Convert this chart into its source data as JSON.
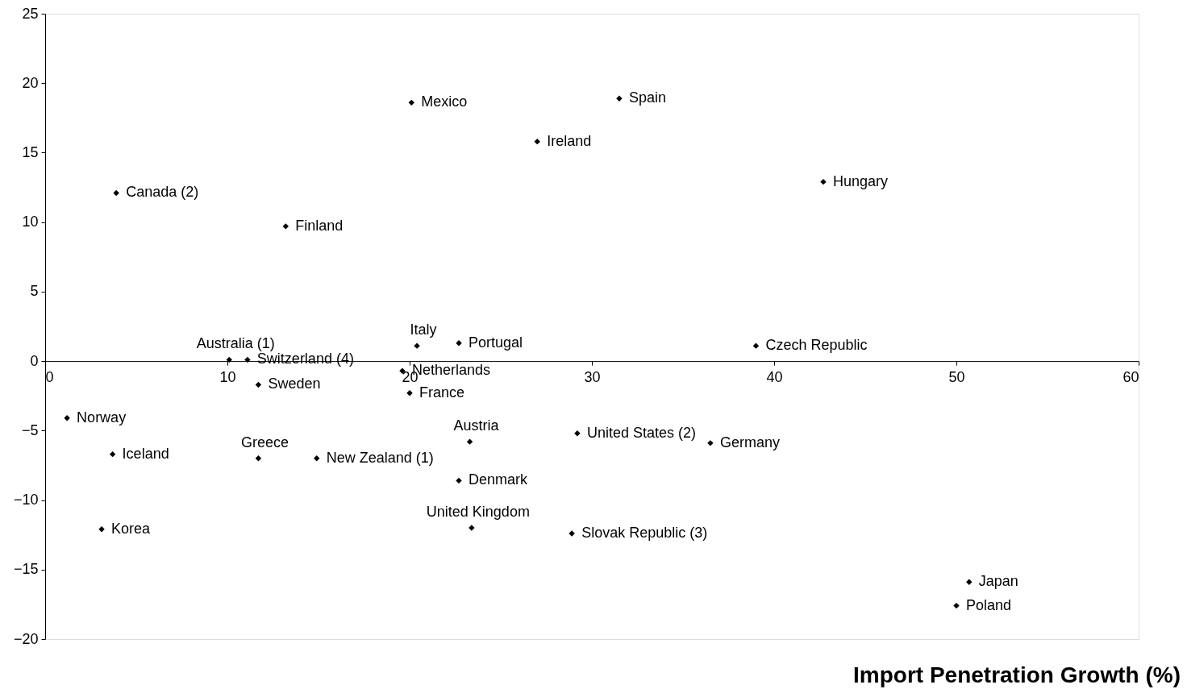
{
  "chart_data": {
    "type": "scatter",
    "xlabel": "Import Penetration Growth (%)",
    "x": [
      20.1,
      31.5,
      27.0,
      42.7,
      3.9,
      13.2,
      10.1,
      11.1,
      20.4,
      22.7,
      39.0,
      19.6,
      11.7,
      20.0,
      1.2,
      3.7,
      11.7,
      14.9,
      23.3,
      29.2,
      36.5,
      22.7,
      3.1,
      23.4,
      28.9,
      50.7,
      50.0
    ],
    "series": [
      {
        "color": "#000000",
        "values": [
          18.6,
          18.9,
          15.8,
          12.9,
          12.1,
          9.7,
          0.1,
          0.1,
          1.1,
          1.3,
          1.1,
          -0.7,
          -1.7,
          -2.3,
          -4.1,
          -6.7,
          -7.0,
          -7.0,
          -5.8,
          -5.2,
          -5.9,
          -8.6,
          -12.1,
          -12.0,
          -12.4,
          -15.9,
          -17.6
        ]
      }
    ],
    "annotations": [
      {
        "text": "Mexico",
        "x": 20.1,
        "y": 18.6
      },
      {
        "text": "Spain",
        "x": 31.5,
        "y": 18.9
      },
      {
        "text": "Ireland",
        "x": 27.0,
        "y": 15.8
      },
      {
        "text": "Hungary",
        "x": 42.7,
        "y": 12.9
      },
      {
        "text": "Canada (2)",
        "x": 3.9,
        "y": 12.1
      },
      {
        "text": "Finland",
        "x": 13.2,
        "y": 9.7
      },
      {
        "text": "Australia (1)",
        "x": 10.1,
        "y": 0.1
      },
      {
        "text": "Switzerland (4)",
        "x": 11.1,
        "y": 0.1
      },
      {
        "text": "Italy",
        "x": 20.4,
        "y": 1.1
      },
      {
        "text": "Portugal",
        "x": 22.7,
        "y": 1.3
      },
      {
        "text": "Czech Republic",
        "x": 39.0,
        "y": 1.1
      },
      {
        "text": "Netherlands",
        "x": 19.6,
        "y": -0.7
      },
      {
        "text": "Sweden",
        "x": 11.7,
        "y": -1.7
      },
      {
        "text": "France",
        "x": 20.0,
        "y": -2.3
      },
      {
        "text": "Norway",
        "x": 1.2,
        "y": -4.1
      },
      {
        "text": "Iceland",
        "x": 3.7,
        "y": -6.7
      },
      {
        "text": "Greece",
        "x": 11.7,
        "y": -7.0
      },
      {
        "text": "New Zealand (1)",
        "x": 14.9,
        "y": -7.0
      },
      {
        "text": "Austria",
        "x": 23.3,
        "y": -5.8
      },
      {
        "text": "United States (2)",
        "x": 29.2,
        "y": -5.2
      },
      {
        "text": "Germany",
        "x": 36.5,
        "y": -5.9
      },
      {
        "text": "Denmark",
        "x": 22.7,
        "y": -8.6
      },
      {
        "text": "Korea",
        "x": 3.1,
        "y": -12.1
      },
      {
        "text": "United Kingdom",
        "x": 23.4,
        "y": -12.0
      },
      {
        "text": "Slovak Republic (3)",
        "x": 28.9,
        "y": -12.4
      },
      {
        "text": "Japan",
        "x": 50.7,
        "y": -15.9
      },
      {
        "text": "Poland",
        "x": 50.0,
        "y": -17.6
      }
    ],
    "xlim": [
      0,
      60
    ],
    "xticks": [
      0,
      10,
      20,
      30,
      40,
      50,
      60
    ],
    "ylim": [
      -20,
      25
    ],
    "yticks": [
      -20,
      -15,
      -10,
      -5,
      0,
      5,
      10,
      15,
      20,
      25
    ],
    "grid": false,
    "marker": "diamond"
  }
}
